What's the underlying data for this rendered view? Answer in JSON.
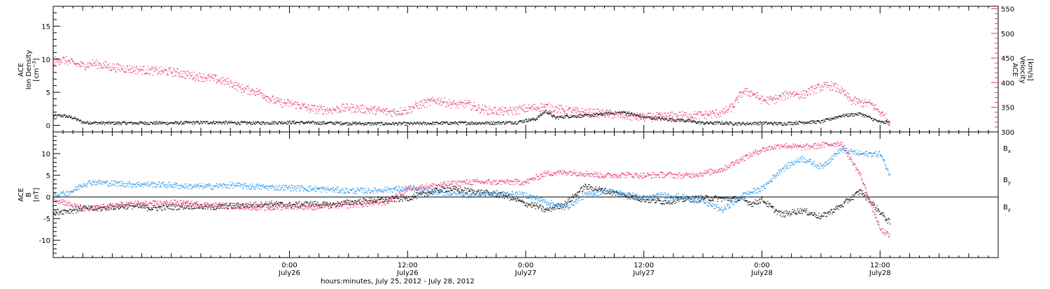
{
  "chart_data": [
    {
      "type": "scatter",
      "panel": "top",
      "left_axis": {
        "label_lines": [
          "ACE",
          "Ion Density"
        ],
        "unit_base": "[cm",
        "unit_exp": "−3",
        "unit_close": "]",
        "ylim": [
          -1,
          18
        ],
        "ticks": [
          0,
          5,
          10,
          15
        ]
      },
      "right_axis": {
        "label_lines": [
          "ACE",
          "Velocity",
          "[km/s]"
        ],
        "color": "#e8336a",
        "ylim": [
          300,
          555
        ],
        "ticks": [
          300,
          350,
          400,
          450,
          500,
          550
        ]
      },
      "x_ticks": [
        {
          "hour": 24,
          "time": "0:00",
          "date": "July26"
        },
        {
          "hour": 36,
          "time": "12:00",
          "date": "July26"
        },
        {
          "hour": 48,
          "time": "0:00",
          "date": "July27"
        },
        {
          "hour": 60,
          "time": "12:00",
          "date": "July27"
        },
        {
          "hour": 72,
          "time": "0:00",
          "date": "July28"
        },
        {
          "hour": 84,
          "time": "12:00",
          "date": "July28"
        }
      ],
      "xlim_hours": [
        0,
        96
      ],
      "series": [
        {
          "color": "#000000",
          "axis": "left",
          "x": [
            0,
            1,
            2,
            3,
            5,
            8,
            12,
            16,
            20,
            24,
            28,
            32,
            36,
            40,
            44,
            47,
            48,
            49,
            50,
            51,
            52,
            54,
            56,
            58,
            60,
            62,
            64,
            66,
            68,
            70,
            72,
            74,
            76,
            78,
            80,
            82,
            84,
            85
          ],
          "y": [
            1.5,
            1.5,
            1.2,
            0.5,
            0.4,
            0.4,
            0.4,
            0.5,
            0.4,
            0.5,
            0.4,
            0.3,
            0.3,
            0.4,
            0.4,
            0.5,
            0.8,
            1.0,
            2.2,
            1.2,
            1.4,
            1.5,
            1.8,
            2.0,
            1.3,
            1.0,
            0.8,
            0.4,
            0.4,
            0.3,
            0.4,
            0.3,
            0.5,
            0.6,
            1.5,
            1.8,
            0.5,
            0.5
          ]
        },
        {
          "color": "#e8336a",
          "axis": "right",
          "x": [
            0,
            1,
            2,
            3,
            4,
            6,
            8,
            10,
            12,
            14,
            16,
            18,
            19,
            20,
            21,
            22,
            23,
            24,
            25,
            26,
            28,
            30,
            32,
            33,
            34,
            35,
            36,
            37,
            38,
            39,
            40,
            41,
            42,
            43,
            44,
            46,
            48,
            50,
            52,
            54,
            56,
            58,
            60,
            62,
            64,
            66,
            68,
            69,
            70,
            71,
            72,
            73,
            74,
            75,
            76,
            77,
            78,
            79,
            80,
            81,
            82,
            83,
            84,
            85
          ],
          "y": [
            445,
            447,
            440,
            435,
            440,
            432,
            428,
            425,
            423,
            415,
            410,
            400,
            390,
            385,
            380,
            368,
            360,
            358,
            355,
            348,
            345,
            350,
            346,
            344,
            341,
            342,
            345,
            355,
            360,
            365,
            360,
            355,
            358,
            350,
            345,
            342,
            348,
            352,
            345,
            340,
            338,
            334,
            330,
            332,
            334,
            335,
            340,
            352,
            382,
            380,
            365,
            365,
            372,
            380,
            375,
            385,
            392,
            395,
            385,
            365,
            360,
            358,
            340,
            320
          ]
        }
      ]
    },
    {
      "type": "scatter",
      "panel": "bottom",
      "left_axis": {
        "label_lines": [
          "ACE",
          "B",
          "[nT]"
        ],
        "ylim": [
          -14,
          15
        ],
        "ticks": [
          -10,
          -5,
          0,
          5,
          10
        ]
      },
      "xlim_hours": [
        0,
        96
      ],
      "x_label": "hours:minutes, July 25, 2012 - July 28, 2012",
      "zero_line": true,
      "legend": [
        {
          "base": "B",
          "sub": "x",
          "color": "#000000"
        },
        {
          "base": "B",
          "sub": "y",
          "color": "#1a8fe8"
        },
        {
          "base": "B",
          "sub": "z",
          "color": "#e8336a"
        }
      ],
      "series": [
        {
          "name": "Bx",
          "color": "#000000",
          "x": [
            0,
            1,
            2,
            3,
            4,
            6,
            8,
            10,
            12,
            14,
            16,
            18,
            20,
            22,
            24,
            26,
            28,
            30,
            32,
            34,
            36,
            38,
            40,
            42,
            44,
            46,
            48,
            49,
            50,
            52,
            54,
            56,
            58,
            60,
            62,
            64,
            66,
            68,
            70,
            71,
            72,
            73,
            74,
            76,
            78,
            80,
            82,
            84,
            85
          ],
          "y": [
            -3.5,
            -3.2,
            -3.0,
            -2.5,
            -2.8,
            -2.2,
            -2.0,
            -2.5,
            -2.2,
            -2.0,
            -2.3,
            -2.0,
            -1.8,
            -1.5,
            -1.8,
            -1.5,
            -1.8,
            -1.2,
            -0.8,
            -0.5,
            -0.2,
            1.0,
            2.0,
            1.5,
            1.0,
            0.3,
            -1.5,
            -2.0,
            -3.0,
            -1.5,
            2.5,
            1.5,
            0.5,
            -0.5,
            -1.0,
            -0.5,
            -0.2,
            -0.3,
            -0.5,
            -1.5,
            -0.5,
            -2.5,
            -4.0,
            -3.0,
            -4.5,
            -2.0,
            1.5,
            -3.5,
            -6.0
          ]
        },
        {
          "name": "By",
          "color": "#1a8fe8",
          "x": [
            0,
            1,
            2,
            3,
            4,
            6,
            8,
            10,
            12,
            14,
            16,
            18,
            20,
            22,
            24,
            26,
            28,
            30,
            32,
            34,
            36,
            38,
            40,
            42,
            44,
            46,
            48,
            50,
            52,
            54,
            56,
            58,
            60,
            62,
            64,
            66,
            68,
            70,
            72,
            74,
            76,
            78,
            80,
            82,
            84,
            85
          ],
          "y": [
            0.5,
            0.8,
            1.5,
            3.0,
            3.5,
            3.2,
            3.0,
            3.0,
            2.8,
            2.5,
            2.5,
            2.8,
            2.5,
            2.3,
            2.2,
            2.0,
            1.8,
            1.5,
            1.5,
            1.8,
            2.0,
            1.5,
            1.0,
            0.5,
            1.0,
            0.8,
            0.5,
            -1.0,
            -2.5,
            0.5,
            1.5,
            0.8,
            -0.2,
            0.5,
            0.0,
            -1.0,
            -3.0,
            0.5,
            2.0,
            6.5,
            9.0,
            7.0,
            11.0,
            10.0,
            10.0,
            5.0
          ]
        },
        {
          "name": "Bz",
          "color": "#e8336a",
          "x": [
            0,
            1,
            2,
            3,
            4,
            6,
            8,
            10,
            12,
            14,
            16,
            18,
            20,
            22,
            24,
            26,
            28,
            30,
            32,
            34,
            36,
            38,
            40,
            42,
            44,
            46,
            48,
            50,
            52,
            54,
            56,
            58,
            60,
            62,
            64,
            66,
            68,
            70,
            72,
            74,
            76,
            78,
            80,
            82,
            84,
            85
          ],
          "y": [
            -0.5,
            -1.0,
            -2.0,
            -2.5,
            -2.5,
            -2.0,
            -1.5,
            -1.5,
            -1.2,
            -1.5,
            -1.8,
            -2.0,
            -2.2,
            -2.5,
            -2.0,
            -2.3,
            -2.0,
            -1.8,
            -1.5,
            -1.0,
            2.0,
            2.5,
            3.0,
            3.5,
            3.5,
            3.5,
            3.5,
            5.5,
            5.8,
            5.5,
            5.0,
            5.2,
            5.0,
            5.2,
            5.0,
            5.5,
            6.5,
            9.0,
            11.0,
            12.0,
            11.5,
            12.0,
            12.5,
            5.0,
            -7.5,
            -9.0
          ]
        }
      ]
    }
  ]
}
